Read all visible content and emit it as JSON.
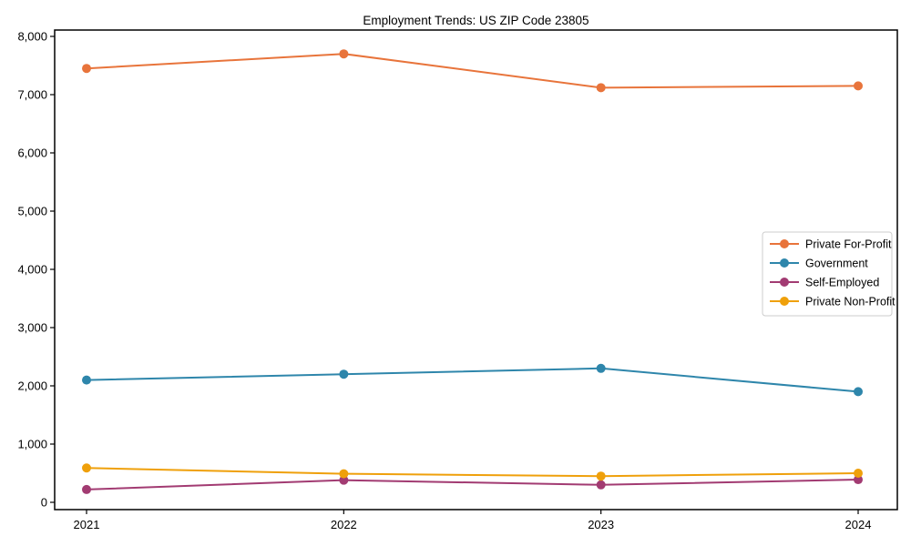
{
  "figure": {
    "title": "Employment Trends: US ZIP Code 23805"
  },
  "chart_data": {
    "type": "line",
    "title": "Employment Trends: US ZIP Code 23805",
    "xlabel": "",
    "ylabel": "",
    "x": [
      "2021",
      "2022",
      "2023",
      "2024"
    ],
    "xtick_labels": [
      "2021",
      "2022",
      "2023",
      "2024"
    ],
    "ylim": [
      0,
      8000
    ],
    "yticks": [
      0,
      1000,
      2000,
      3000,
      4000,
      5000,
      6000,
      7000,
      8000
    ],
    "ytick_labels": [
      "0",
      "1,000",
      "2,000",
      "3,000",
      "4,000",
      "5,000",
      "6,000",
      "7,000",
      "8,000"
    ],
    "grid": false,
    "marker": "circle",
    "legend": {
      "position": "middle-right",
      "entries": [
        "Private For-Profit",
        "Government",
        "Self-Employed",
        "Private Non-Profit"
      ]
    },
    "series": [
      {
        "name": "Private For-Profit",
        "color": "#E8743B",
        "values": [
          7450,
          7700,
          7120,
          7150
        ]
      },
      {
        "name": "Government",
        "color": "#2E86AB",
        "values": [
          2100,
          2200,
          2300,
          1900
        ]
      },
      {
        "name": "Self-Employed",
        "color": "#A23B72",
        "values": [
          220,
          380,
          300,
          390
        ]
      },
      {
        "name": "Private Non-Profit",
        "color": "#EFA00B",
        "values": [
          590,
          490,
          450,
          500
        ]
      }
    ]
  }
}
